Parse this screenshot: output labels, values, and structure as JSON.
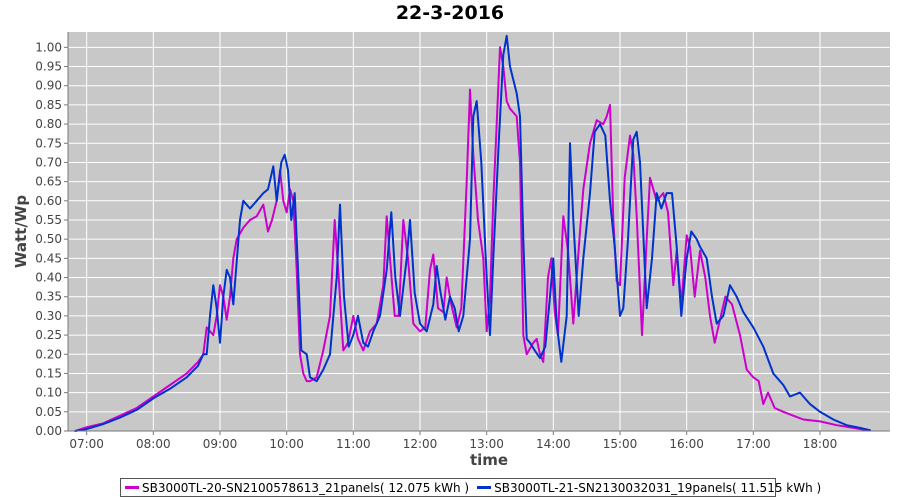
{
  "chart_data": {
    "type": "line",
    "title": "22-3-2016",
    "xlabel": "time",
    "ylabel": "Watt/Wp",
    "xlim": [
      6.72,
      19.05
    ],
    "ylim": [
      0,
      1.04
    ],
    "x_ticks": [
      "07:00",
      "08:00",
      "09:00",
      "10:00",
      "11:00",
      "12:00",
      "13:00",
      "14:00",
      "15:00",
      "16:00",
      "17:00",
      "18:00"
    ],
    "y_ticks": [
      "0.00",
      "0.05",
      "0.10",
      "0.15",
      "0.20",
      "0.25",
      "0.30",
      "0.35",
      "0.40",
      "0.45",
      "0.50",
      "0.55",
      "0.60",
      "0.65",
      "0.70",
      "0.75",
      "0.80",
      "0.85",
      "0.90",
      "0.95",
      "1.00"
    ],
    "grid": true,
    "legend_position": "bottom",
    "series": [
      {
        "name": "SB3000TL-20-SN2100578613_21panels( 12.075 kWh )",
        "color": "#cc00cc",
        "points": [
          [
            6.83,
            0.0
          ],
          [
            7.0,
            0.01
          ],
          [
            7.25,
            0.02
          ],
          [
            7.5,
            0.04
          ],
          [
            7.75,
            0.06
          ],
          [
            8.0,
            0.09
          ],
          [
            8.25,
            0.12
          ],
          [
            8.5,
            0.15
          ],
          [
            8.67,
            0.18
          ],
          [
            8.75,
            0.2
          ],
          [
            8.8,
            0.27
          ],
          [
            8.85,
            0.26
          ],
          [
            8.9,
            0.25
          ],
          [
            8.95,
            0.3
          ],
          [
            9.0,
            0.38
          ],
          [
            9.05,
            0.35
          ],
          [
            9.1,
            0.29
          ],
          [
            9.15,
            0.35
          ],
          [
            9.2,
            0.45
          ],
          [
            9.25,
            0.5
          ],
          [
            9.35,
            0.53
          ],
          [
            9.45,
            0.55
          ],
          [
            9.55,
            0.56
          ],
          [
            9.65,
            0.59
          ],
          [
            9.72,
            0.52
          ],
          [
            9.78,
            0.55
          ],
          [
            9.85,
            0.6
          ],
          [
            9.9,
            0.68
          ],
          [
            9.95,
            0.6
          ],
          [
            10.0,
            0.57
          ],
          [
            10.05,
            0.63
          ],
          [
            10.1,
            0.6
          ],
          [
            10.15,
            0.42
          ],
          [
            10.2,
            0.2
          ],
          [
            10.25,
            0.15
          ],
          [
            10.3,
            0.13
          ],
          [
            10.35,
            0.13
          ],
          [
            10.45,
            0.14
          ],
          [
            10.55,
            0.21
          ],
          [
            10.65,
            0.3
          ],
          [
            10.72,
            0.55
          ],
          [
            10.78,
            0.4
          ],
          [
            10.85,
            0.21
          ],
          [
            10.92,
            0.23
          ],
          [
            11.0,
            0.3
          ],
          [
            11.07,
            0.24
          ],
          [
            11.15,
            0.21
          ],
          [
            11.25,
            0.26
          ],
          [
            11.35,
            0.28
          ],
          [
            11.45,
            0.38
          ],
          [
            11.5,
            0.56
          ],
          [
            11.55,
            0.45
          ],
          [
            11.62,
            0.3
          ],
          [
            11.68,
            0.3
          ],
          [
            11.75,
            0.55
          ],
          [
            11.82,
            0.45
          ],
          [
            11.9,
            0.28
          ],
          [
            12.0,
            0.26
          ],
          [
            12.08,
            0.27
          ],
          [
            12.15,
            0.42
          ],
          [
            12.2,
            0.46
          ],
          [
            12.27,
            0.32
          ],
          [
            12.35,
            0.31
          ],
          [
            12.4,
            0.4
          ],
          [
            12.47,
            0.33
          ],
          [
            12.55,
            0.27
          ],
          [
            12.62,
            0.32
          ],
          [
            12.7,
            0.65
          ],
          [
            12.75,
            0.89
          ],
          [
            12.8,
            0.72
          ],
          [
            12.87,
            0.55
          ],
          [
            12.95,
            0.45
          ],
          [
            13.0,
            0.26
          ],
          [
            13.05,
            0.35
          ],
          [
            13.1,
            0.6
          ],
          [
            13.15,
            0.8
          ],
          [
            13.2,
            1.0
          ],
          [
            13.25,
            0.95
          ],
          [
            13.3,
            0.86
          ],
          [
            13.35,
            0.84
          ],
          [
            13.45,
            0.82
          ],
          [
            13.5,
            0.7
          ],
          [
            13.55,
            0.25
          ],
          [
            13.6,
            0.2
          ],
          [
            13.7,
            0.23
          ],
          [
            13.75,
            0.24
          ],
          [
            13.8,
            0.2
          ],
          [
            13.85,
            0.18
          ],
          [
            13.92,
            0.4
          ],
          [
            13.97,
            0.45
          ],
          [
            14.02,
            0.31
          ],
          [
            14.07,
            0.25
          ],
          [
            14.15,
            0.56
          ],
          [
            14.22,
            0.47
          ],
          [
            14.3,
            0.28
          ],
          [
            14.4,
            0.52
          ],
          [
            14.45,
            0.63
          ],
          [
            14.55,
            0.75
          ],
          [
            14.65,
            0.81
          ],
          [
            14.75,
            0.8
          ],
          [
            14.8,
            0.82
          ],
          [
            14.85,
            0.85
          ],
          [
            14.9,
            0.55
          ],
          [
            14.95,
            0.39
          ],
          [
            15.0,
            0.38
          ],
          [
            15.07,
            0.66
          ],
          [
            15.15,
            0.77
          ],
          [
            15.2,
            0.72
          ],
          [
            15.25,
            0.56
          ],
          [
            15.33,
            0.25
          ],
          [
            15.4,
            0.5
          ],
          [
            15.45,
            0.66
          ],
          [
            15.55,
            0.6
          ],
          [
            15.65,
            0.62
          ],
          [
            15.72,
            0.57
          ],
          [
            15.8,
            0.38
          ],
          [
            15.85,
            0.47
          ],
          [
            15.92,
            0.33
          ],
          [
            16.0,
            0.51
          ],
          [
            16.05,
            0.48
          ],
          [
            16.12,
            0.35
          ],
          [
            16.2,
            0.47
          ],
          [
            16.28,
            0.4
          ],
          [
            16.35,
            0.3
          ],
          [
            16.42,
            0.23
          ],
          [
            16.5,
            0.29
          ],
          [
            16.58,
            0.35
          ],
          [
            16.68,
            0.33
          ],
          [
            16.8,
            0.25
          ],
          [
            16.9,
            0.16
          ],
          [
            17.0,
            0.14
          ],
          [
            17.08,
            0.13
          ],
          [
            17.15,
            0.07
          ],
          [
            17.22,
            0.1
          ],
          [
            17.32,
            0.06
          ],
          [
            17.45,
            0.05
          ],
          [
            17.6,
            0.04
          ],
          [
            17.75,
            0.03
          ],
          [
            18.0,
            0.025
          ],
          [
            18.25,
            0.015
          ],
          [
            18.5,
            0.008
          ],
          [
            18.7,
            0.002
          ]
        ]
      },
      {
        "name": "SB3000TL-21-SN2130032031_19panels( 11.515 kWh )",
        "color": "#0033cc",
        "points": [
          [
            6.83,
            0.0
          ],
          [
            7.0,
            0.005
          ],
          [
            7.25,
            0.018
          ],
          [
            7.5,
            0.035
          ],
          [
            7.75,
            0.055
          ],
          [
            8.0,
            0.085
          ],
          [
            8.25,
            0.11
          ],
          [
            8.5,
            0.14
          ],
          [
            8.67,
            0.17
          ],
          [
            8.75,
            0.2
          ],
          [
            8.8,
            0.2
          ],
          [
            8.85,
            0.3
          ],
          [
            8.9,
            0.38
          ],
          [
            8.95,
            0.32
          ],
          [
            9.0,
            0.23
          ],
          [
            9.05,
            0.35
          ],
          [
            9.1,
            0.42
          ],
          [
            9.15,
            0.4
          ],
          [
            9.2,
            0.33
          ],
          [
            9.3,
            0.55
          ],
          [
            9.35,
            0.6
          ],
          [
            9.45,
            0.58
          ],
          [
            9.55,
            0.6
          ],
          [
            9.65,
            0.62
          ],
          [
            9.72,
            0.63
          ],
          [
            9.8,
            0.69
          ],
          [
            9.85,
            0.6
          ],
          [
            9.92,
            0.7
          ],
          [
            9.97,
            0.72
          ],
          [
            10.02,
            0.68
          ],
          [
            10.07,
            0.55
          ],
          [
            10.12,
            0.62
          ],
          [
            10.18,
            0.38
          ],
          [
            10.22,
            0.21
          ],
          [
            10.3,
            0.2
          ],
          [
            10.35,
            0.14
          ],
          [
            10.45,
            0.13
          ],
          [
            10.55,
            0.16
          ],
          [
            10.65,
            0.2
          ],
          [
            10.75,
            0.4
          ],
          [
            10.8,
            0.59
          ],
          [
            10.86,
            0.35
          ],
          [
            10.93,
            0.22
          ],
          [
            11.0,
            0.25
          ],
          [
            11.07,
            0.3
          ],
          [
            11.15,
            0.23
          ],
          [
            11.22,
            0.22
          ],
          [
            11.3,
            0.26
          ],
          [
            11.4,
            0.3
          ],
          [
            11.5,
            0.42
          ],
          [
            11.57,
            0.57
          ],
          [
            11.63,
            0.4
          ],
          [
            11.7,
            0.3
          ],
          [
            11.8,
            0.45
          ],
          [
            11.85,
            0.55
          ],
          [
            11.92,
            0.36
          ],
          [
            12.0,
            0.28
          ],
          [
            12.1,
            0.26
          ],
          [
            12.2,
            0.33
          ],
          [
            12.25,
            0.43
          ],
          [
            12.3,
            0.37
          ],
          [
            12.38,
            0.29
          ],
          [
            12.45,
            0.35
          ],
          [
            12.52,
            0.32
          ],
          [
            12.58,
            0.26
          ],
          [
            12.65,
            0.3
          ],
          [
            12.75,
            0.5
          ],
          [
            12.8,
            0.82
          ],
          [
            12.85,
            0.86
          ],
          [
            12.92,
            0.7
          ],
          [
            13.0,
            0.4
          ],
          [
            13.05,
            0.25
          ],
          [
            13.1,
            0.45
          ],
          [
            13.18,
            0.75
          ],
          [
            13.25,
            0.98
          ],
          [
            13.3,
            1.03
          ],
          [
            13.35,
            0.95
          ],
          [
            13.45,
            0.88
          ],
          [
            13.5,
            0.82
          ],
          [
            13.55,
            0.5
          ],
          [
            13.6,
            0.24
          ],
          [
            13.65,
            0.23
          ],
          [
            13.72,
            0.21
          ],
          [
            13.8,
            0.19
          ],
          [
            13.88,
            0.22
          ],
          [
            13.95,
            0.35
          ],
          [
            14.0,
            0.45
          ],
          [
            14.05,
            0.28
          ],
          [
            14.12,
            0.18
          ],
          [
            14.2,
            0.3
          ],
          [
            14.25,
            0.75
          ],
          [
            14.3,
            0.55
          ],
          [
            14.38,
            0.3
          ],
          [
            14.45,
            0.45
          ],
          [
            14.55,
            0.62
          ],
          [
            14.62,
            0.78
          ],
          [
            14.7,
            0.8
          ],
          [
            14.78,
            0.77
          ],
          [
            14.85,
            0.6
          ],
          [
            14.92,
            0.48
          ],
          [
            15.0,
            0.3
          ],
          [
            15.05,
            0.32
          ],
          [
            15.12,
            0.5
          ],
          [
            15.2,
            0.76
          ],
          [
            15.25,
            0.78
          ],
          [
            15.3,
            0.7
          ],
          [
            15.4,
            0.32
          ],
          [
            15.48,
            0.45
          ],
          [
            15.55,
            0.62
          ],
          [
            15.62,
            0.58
          ],
          [
            15.7,
            0.62
          ],
          [
            15.78,
            0.62
          ],
          [
            15.85,
            0.48
          ],
          [
            15.92,
            0.3
          ],
          [
            16.0,
            0.45
          ],
          [
            16.07,
            0.52
          ],
          [
            16.15,
            0.5
          ],
          [
            16.2,
            0.48
          ],
          [
            16.3,
            0.45
          ],
          [
            16.38,
            0.35
          ],
          [
            16.45,
            0.28
          ],
          [
            16.55,
            0.3
          ],
          [
            16.65,
            0.38
          ],
          [
            16.75,
            0.35
          ],
          [
            16.85,
            0.31
          ],
          [
            17.0,
            0.27
          ],
          [
            17.15,
            0.22
          ],
          [
            17.3,
            0.15
          ],
          [
            17.45,
            0.12
          ],
          [
            17.55,
            0.09
          ],
          [
            17.7,
            0.1
          ],
          [
            17.85,
            0.07
          ],
          [
            18.0,
            0.05
          ],
          [
            18.2,
            0.03
          ],
          [
            18.4,
            0.015
          ],
          [
            18.6,
            0.008
          ],
          [
            18.75,
            0.002
          ]
        ]
      }
    ]
  }
}
